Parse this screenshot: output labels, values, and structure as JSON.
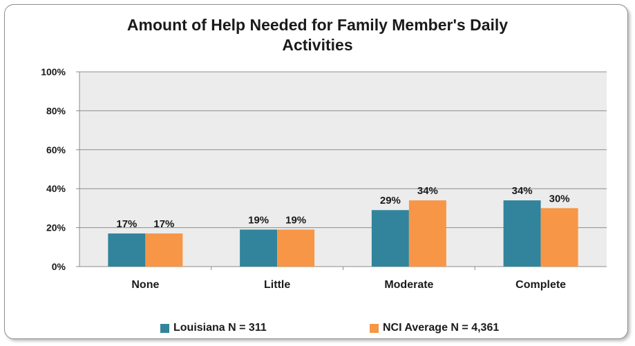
{
  "chart_data": {
    "type": "bar",
    "title_lines": [
      "Amount of Help Needed for Family Member's Daily",
      "Activities"
    ],
    "categories": [
      "None",
      "Little",
      "Moderate",
      "Complete"
    ],
    "series": [
      {
        "name": "Louisiana N = 311",
        "color": "#31849b",
        "values": [
          17,
          19,
          29,
          34
        ],
        "labels": [
          "17%",
          "19%",
          "29%",
          "34%"
        ]
      },
      {
        "name": "NCI Average N = 4,361",
        "color": "#f79646",
        "values": [
          17,
          19,
          34,
          30
        ],
        "labels": [
          "17%",
          "19%",
          "34%",
          "30%"
        ]
      }
    ],
    "ylim": [
      0,
      100
    ],
    "yticks": [
      0,
      20,
      40,
      60,
      80,
      100
    ],
    "ytick_labels": [
      "0%",
      "20%",
      "40%",
      "60%",
      "80%",
      "100%"
    ],
    "xlabel": "",
    "ylabel": "",
    "grid": true,
    "plot_background": "#ececec",
    "legend_position": "bottom"
  }
}
